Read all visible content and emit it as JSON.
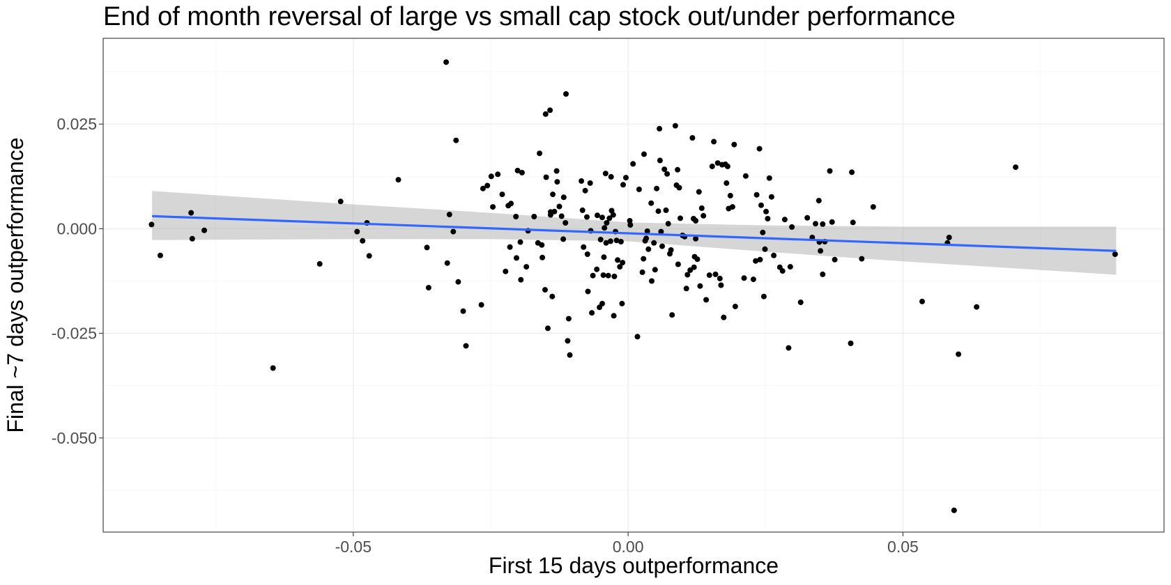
{
  "chart_data": {
    "type": "scatter",
    "title": "End of month reversal of large vs small cap stock out/under performance",
    "xlabel": "First 15 days outperformance",
    "ylabel": "Final ~7 days outperformance",
    "xlim": [
      -0.0955,
      0.0975
    ],
    "ylim": [
      -0.0725,
      0.0455
    ],
    "x_major_ticks": [
      -0.05,
      0.0,
      0.05
    ],
    "x_tick_labels": [
      "-0.05",
      "0.00",
      "0.05"
    ],
    "x_minor_ticks": [
      -0.075,
      -0.025,
      0.025,
      0.075
    ],
    "y_major_ticks": [
      0.025,
      0.0,
      -0.025,
      -0.05
    ],
    "y_tick_labels": [
      "0.025",
      "0.000",
      "-0.025",
      "-0.050"
    ],
    "y_minor_ticks": [
      0.0375,
      0.0125,
      -0.0125,
      -0.0375,
      -0.0625
    ],
    "colors": {
      "points": "#000000",
      "trend_line": "#3366ff",
      "confidence_band": "#999999"
    },
    "trend_line": {
      "x": [
        -0.0866,
        0.0888
      ],
      "y": [
        0.003,
        -0.0053
      ]
    },
    "confidence_band": {
      "x": [
        -0.0866,
        -0.05,
        -0.025,
        0.0,
        0.025,
        0.05,
        0.0888
      ],
      "upper": [
        0.009,
        0.0058,
        0.0038,
        0.0015,
        0.0008,
        0.0005,
        0.0005
      ],
      "lower": [
        -0.0027,
        -0.0025,
        -0.0025,
        -0.003,
        -0.0055,
        -0.0078,
        -0.011
      ]
    },
    "points": [
      {
        "x": -0.0867,
        "y": 0.001
      },
      {
        "x": -0.0851,
        "y": -0.0064
      },
      {
        "x": -0.0795,
        "y": 0.0038
      },
      {
        "x": -0.0793,
        "y": -0.0024
      },
      {
        "x": -0.0771,
        "y": -0.0004
      },
      {
        "x": -0.0646,
        "y": -0.0333
      },
      {
        "x": -0.0561,
        "y": -0.0084
      },
      {
        "x": -0.0523,
        "y": 0.0065
      },
      {
        "x": -0.0493,
        "y": -0.0007
      },
      {
        "x": -0.0483,
        "y": -0.0029
      },
      {
        "x": -0.0475,
        "y": 0.0014
      },
      {
        "x": -0.0471,
        "y": -0.0065
      },
      {
        "x": -0.0418,
        "y": 0.0117
      },
      {
        "x": -0.0366,
        "y": -0.0045
      },
      {
        "x": -0.0363,
        "y": -0.0141
      },
      {
        "x": -0.0331,
        "y": 0.0398
      },
      {
        "x": -0.0329,
        "y": -0.0082
      },
      {
        "x": -0.0325,
        "y": 0.0034
      },
      {
        "x": -0.0318,
        "y": -0.0007
      },
      {
        "x": -0.0313,
        "y": 0.0211
      },
      {
        "x": -0.0309,
        "y": -0.0127
      },
      {
        "x": -0.03,
        "y": -0.0197
      },
      {
        "x": -0.0295,
        "y": -0.028
      },
      {
        "x": -0.0267,
        "y": -0.0182
      },
      {
        "x": -0.0264,
        "y": 0.0096
      },
      {
        "x": -0.0256,
        "y": 0.0103
      },
      {
        "x": -0.0249,
        "y": 0.0125
      },
      {
        "x": -0.0246,
        "y": 0.0052
      },
      {
        "x": -0.0237,
        "y": 0.013
      },
      {
        "x": -0.0229,
        "y": 0.0082
      },
      {
        "x": -0.0223,
        "y": -0.0102
      },
      {
        "x": -0.0218,
        "y": 0.0055
      },
      {
        "x": -0.0215,
        "y": -0.0044
      },
      {
        "x": -0.0213,
        "y": 0.006
      },
      {
        "x": -0.0204,
        "y": 0.0029
      },
      {
        "x": -0.0203,
        "y": -0.007
      },
      {
        "x": -0.0201,
        "y": 0.0139
      },
      {
        "x": -0.0196,
        "y": -0.0032
      },
      {
        "x": -0.0195,
        "y": -0.0122
      },
      {
        "x": -0.0193,
        "y": 0.0134
      },
      {
        "x": -0.0185,
        "y": -0.0091
      },
      {
        "x": -0.0182,
        "y": -0.0005
      },
      {
        "x": -0.0171,
        "y": 0.0029
      },
      {
        "x": -0.0164,
        "y": -0.0034
      },
      {
        "x": -0.0161,
        "y": 0.018
      },
      {
        "x": -0.0157,
        "y": -0.0039
      },
      {
        "x": -0.0156,
        "y": -0.0069
      },
      {
        "x": -0.0151,
        "y": -0.0146
      },
      {
        "x": -0.015,
        "y": 0.0274
      },
      {
        "x": -0.0149,
        "y": 0.0123
      },
      {
        "x": -0.0146,
        "y": -0.0238
      },
      {
        "x": -0.0142,
        "y": 0.0283
      },
      {
        "x": -0.0141,
        "y": 0.004
      },
      {
        "x": -0.0141,
        "y": 0.0033
      },
      {
        "x": -0.0138,
        "y": -0.0162
      },
      {
        "x": -0.0137,
        "y": 0.0082
      },
      {
        "x": -0.0134,
        "y": 0.0041
      },
      {
        "x": -0.013,
        "y": 0.0138
      },
      {
        "x": -0.0129,
        "y": 0.0112
      },
      {
        "x": -0.0125,
        "y": 0.0053
      },
      {
        "x": -0.0121,
        "y": 0.003
      },
      {
        "x": -0.0118,
        "y": -0.0025
      },
      {
        "x": -0.0117,
        "y": 0.0075
      },
      {
        "x": -0.0114,
        "y": 0.0014
      },
      {
        "x": -0.0113,
        "y": 0.0322
      },
      {
        "x": -0.011,
        "y": -0.0268
      },
      {
        "x": -0.0108,
        "y": -0.0215
      },
      {
        "x": -0.0106,
        "y": -0.0302
      },
      {
        "x": -0.0085,
        "y": 0.0114
      },
      {
        "x": -0.0083,
        "y": 0.0044
      },
      {
        "x": -0.0081,
        "y": -0.0044
      },
      {
        "x": -0.0078,
        "y": 0.0091
      },
      {
        "x": -0.0075,
        "y": 0.0028
      },
      {
        "x": -0.0074,
        "y": -0.0061
      },
      {
        "x": -0.0073,
        "y": -0.015
      },
      {
        "x": -0.0069,
        "y": 0.0109
      },
      {
        "x": -0.0068,
        "y": -0.0005
      },
      {
        "x": -0.0066,
        "y": -0.0201
      },
      {
        "x": -0.0064,
        "y": -0.0112
      },
      {
        "x": -0.0057,
        "y": -0.0097
      },
      {
        "x": -0.0056,
        "y": 0.0032
      },
      {
        "x": -0.0052,
        "y": -0.0188
      },
      {
        "x": -0.005,
        "y": -0.0026
      },
      {
        "x": -0.0047,
        "y": -0.0179
      },
      {
        "x": -0.0047,
        "y": 0.0027
      },
      {
        "x": -0.0045,
        "y": -0.0111
      },
      {
        "x": -0.0044,
        "y": -0.0068
      },
      {
        "x": -0.0043,
        "y": 0.0002
      },
      {
        "x": -0.0041,
        "y": 0.0132
      },
      {
        "x": -0.004,
        "y": -0.0034
      },
      {
        "x": -0.0039,
        "y": 0.0014
      },
      {
        "x": -0.0036,
        "y": -0.0112
      },
      {
        "x": -0.0034,
        "y": 0.0025
      },
      {
        "x": -0.0032,
        "y": -0.003
      },
      {
        "x": -0.0031,
        "y": 0.0124
      },
      {
        "x": -0.003,
        "y": 0.0043
      },
      {
        "x": -0.0027,
        "y": 0.0033
      },
      {
        "x": -0.0026,
        "y": -0.0208
      },
      {
        "x": -0.0025,
        "y": -0.0114
      },
      {
        "x": -0.0023,
        "y": -0.0007
      },
      {
        "x": -0.0021,
        "y": -0.0028
      },
      {
        "x": -0.0019,
        "y": -0.0075
      },
      {
        "x": -0.0015,
        "y": -0.0091
      },
      {
        "x": -0.0013,
        "y": -0.0031
      },
      {
        "x": -0.0011,
        "y": -0.0179
      },
      {
        "x": -0.001,
        "y": -0.0081
      },
      {
        "x": -0.0009,
        "y": 0.0105
      },
      {
        "x": -0.0004,
        "y": 0.0122
      },
      {
        "x": 0.0003,
        "y": 0.0019
      },
      {
        "x": 0.0004,
        "y": 0.0009
      },
      {
        "x": 0.0009,
        "y": 0.0155
      },
      {
        "x": 0.0017,
        "y": -0.0258
      },
      {
        "x": 0.002,
        "y": 0.0094
      },
      {
        "x": 0.0026,
        "y": -0.0104
      },
      {
        "x": 0.0028,
        "y": -0.0072
      },
      {
        "x": 0.0029,
        "y": 0.0178
      },
      {
        "x": 0.0031,
        "y": -0.0029
      },
      {
        "x": 0.0033,
        "y": -0.0023
      },
      {
        "x": 0.0035,
        "y": -0.0006
      },
      {
        "x": 0.0037,
        "y": -0.0049
      },
      {
        "x": 0.0042,
        "y": 0.0061
      },
      {
        "x": 0.0043,
        "y": -0.0125
      },
      {
        "x": 0.0047,
        "y": -0.0034
      },
      {
        "x": 0.0049,
        "y": -0.0098
      },
      {
        "x": 0.0052,
        "y": 0.0096
      },
      {
        "x": 0.0055,
        "y": 0.0042
      },
      {
        "x": 0.0057,
        "y": 0.0239
      },
      {
        "x": 0.0058,
        "y": 0.0163
      },
      {
        "x": 0.006,
        "y": -0.0007
      },
      {
        "x": 0.0062,
        "y": -0.0042
      },
      {
        "x": 0.0066,
        "y": 0.0142
      },
      {
        "x": 0.0069,
        "y": 0.0044
      },
      {
        "x": 0.0071,
        "y": 0.0131
      },
      {
        "x": 0.0073,
        "y": 0.0012
      },
      {
        "x": 0.0076,
        "y": -0.006
      },
      {
        "x": 0.0078,
        "y": -0.0051
      },
      {
        "x": 0.008,
        "y": -0.0206
      },
      {
        "x": 0.0086,
        "y": 0.0246
      },
      {
        "x": 0.0088,
        "y": 0.0104
      },
      {
        "x": 0.009,
        "y": 0.0141
      },
      {
        "x": 0.0091,
        "y": -0.0085
      },
      {
        "x": 0.0093,
        "y": 0.0098
      },
      {
        "x": 0.0095,
        "y": 0.0025
      },
      {
        "x": 0.0099,
        "y": -0.0016
      },
      {
        "x": 0.0103,
        "y": -0.0019
      },
      {
        "x": 0.0106,
        "y": -0.0143
      },
      {
        "x": 0.0108,
        "y": -0.011
      },
      {
        "x": 0.0113,
        "y": -0.0099
      },
      {
        "x": 0.0117,
        "y": 0.0217
      },
      {
        "x": 0.0119,
        "y": 0.0024
      },
      {
        "x": 0.012,
        "y": -0.0092
      },
      {
        "x": 0.0121,
        "y": -0.0067
      },
      {
        "x": 0.0123,
        "y": 0.0019
      },
      {
        "x": 0.0123,
        "y": -0.0024
      },
      {
        "x": 0.0126,
        "y": -0.0073
      },
      {
        "x": 0.0129,
        "y": 0.0088
      },
      {
        "x": 0.0131,
        "y": -0.0137
      },
      {
        "x": 0.0134,
        "y": 0.0049
      },
      {
        "x": 0.0137,
        "y": 0.0031
      },
      {
        "x": 0.0142,
        "y": -0.017
      },
      {
        "x": 0.0148,
        "y": -0.0111
      },
      {
        "x": 0.0153,
        "y": 0.0149
      },
      {
        "x": 0.0156,
        "y": 0.0208
      },
      {
        "x": 0.0159,
        "y": -0.0109
      },
      {
        "x": 0.0163,
        "y": 0.0157
      },
      {
        "x": 0.0167,
        "y": -0.0119
      },
      {
        "x": 0.0169,
        "y": -0.0135
      },
      {
        "x": 0.0171,
        "y": 0.0153
      },
      {
        "x": 0.0174,
        "y": -0.0212
      },
      {
        "x": 0.0177,
        "y": 0.0154
      },
      {
        "x": 0.0179,
        "y": 0.0109
      },
      {
        "x": 0.0181,
        "y": 0.0149
      },
      {
        "x": 0.0183,
        "y": 0.0048
      },
      {
        "x": 0.0186,
        "y": 0.0079
      },
      {
        "x": 0.019,
        "y": 0.0052
      },
      {
        "x": 0.0193,
        "y": 0.0201
      },
      {
        "x": 0.0195,
        "y": -0.0186
      },
      {
        "x": 0.0211,
        "y": -0.0118
      },
      {
        "x": 0.0214,
        "y": 0.0126
      },
      {
        "x": 0.0228,
        "y": -0.0121
      },
      {
        "x": 0.0232,
        "y": -0.0077
      },
      {
        "x": 0.0234,
        "y": 0.0081
      },
      {
        "x": 0.0239,
        "y": 0.0191
      },
      {
        "x": 0.024,
        "y": -0.0074
      },
      {
        "x": 0.0242,
        "y": 0.0056
      },
      {
        "x": 0.0245,
        "y": -0.0009
      },
      {
        "x": 0.0247,
        "y": -0.0162
      },
      {
        "x": 0.0249,
        "y": -0.0049
      },
      {
        "x": 0.0251,
        "y": 0.0041
      },
      {
        "x": 0.0254,
        "y": 0.0024
      },
      {
        "x": 0.0257,
        "y": 0.0121
      },
      {
        "x": 0.0261,
        "y": 0.0076
      },
      {
        "x": 0.0265,
        "y": -0.0064
      },
      {
        "x": 0.0276,
        "y": -0.0092
      },
      {
        "x": 0.0281,
        "y": -0.0101
      },
      {
        "x": 0.0285,
        "y": 0.0022
      },
      {
        "x": 0.0292,
        "y": -0.0285
      },
      {
        "x": 0.0295,
        "y": -0.0091
      },
      {
        "x": 0.0298,
        "y": 0.0004
      },
      {
        "x": 0.0314,
        "y": -0.0176
      },
      {
        "x": 0.0326,
        "y": 0.0026
      },
      {
        "x": 0.0335,
        "y": -0.0021
      },
      {
        "x": 0.0341,
        "y": 0.0012
      },
      {
        "x": 0.0347,
        "y": 0.0067
      },
      {
        "x": 0.0348,
        "y": -0.0032
      },
      {
        "x": 0.035,
        "y": -0.0053
      },
      {
        "x": 0.0354,
        "y": 0.0011
      },
      {
        "x": 0.0354,
        "y": -0.0109
      },
      {
        "x": 0.0358,
        "y": -0.0031
      },
      {
        "x": 0.0367,
        "y": 0.0138
      },
      {
        "x": 0.0371,
        "y": 0.0016
      },
      {
        "x": 0.0376,
        "y": -0.0074
      },
      {
        "x": 0.0407,
        "y": 0.0135
      },
      {
        "x": 0.0405,
        "y": -0.0274
      },
      {
        "x": 0.0409,
        "y": 0.0015
      },
      {
        "x": 0.0425,
        "y": -0.0072
      },
      {
        "x": 0.0446,
        "y": 0.0052
      },
      {
        "x": 0.0535,
        "y": -0.0174
      },
      {
        "x": 0.0581,
        "y": -0.0034
      },
      {
        "x": 0.0584,
        "y": -0.0021
      },
      {
        "x": 0.0593,
        "y": -0.0673
      },
      {
        "x": 0.0601,
        "y": -0.03
      },
      {
        "x": 0.0634,
        "y": -0.0187
      },
      {
        "x": 0.0705,
        "y": 0.0147
      },
      {
        "x": 0.0886,
        "y": -0.0061
      }
    ]
  }
}
